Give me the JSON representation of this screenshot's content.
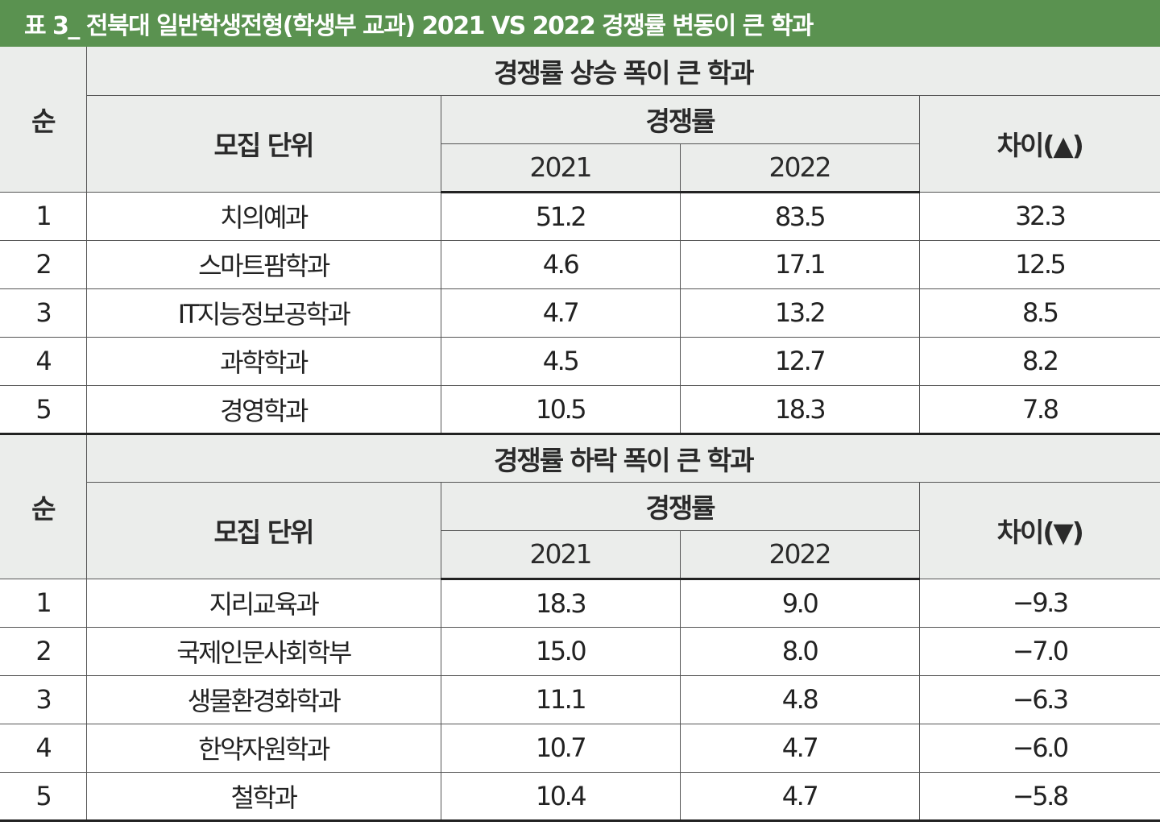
{
  "title": "표 3_ 전북대 일반학생전형(학생부 교과) 2021 VS 2022 경쟁률 변동이 큰 학과",
  "colors": {
    "title_bg": "#5a9250",
    "header_bg": "#ebedeb"
  },
  "headers": {
    "rank": "순",
    "unit": "모집 단위",
    "rate": "경쟁률",
    "year1": "2021",
    "year2": "2022"
  },
  "rise": {
    "caption": "경쟁률 상승 폭이 큰 학과",
    "diff_label": "차이(▲)",
    "rows": [
      {
        "rank": "1",
        "unit": "치의예과",
        "y2021": "51.2",
        "y2022": "83.5",
        "diff": "32.3"
      },
      {
        "rank": "2",
        "unit": "스마트팜학과",
        "y2021": "4.6",
        "y2022": "17.1",
        "diff": "12.5"
      },
      {
        "rank": "3",
        "unit": "IT지능정보공학과",
        "y2021": "4.7",
        "y2022": "13.2",
        "diff": "8.5"
      },
      {
        "rank": "4",
        "unit": "과학학과",
        "y2021": "4.5",
        "y2022": "12.7",
        "diff": "8.2"
      },
      {
        "rank": "5",
        "unit": "경영학과",
        "y2021": "10.5",
        "y2022": "18.3",
        "diff": "7.8"
      }
    ]
  },
  "fall": {
    "caption": "경쟁률 하락 폭이 큰 학과",
    "diff_label": "차이(▼)",
    "rows": [
      {
        "rank": "1",
        "unit": "지리교육과",
        "y2021": "18.3",
        "y2022": "9.0",
        "diff": "−9.3"
      },
      {
        "rank": "2",
        "unit": "국제인문사회학부",
        "y2021": "15.0",
        "y2022": "8.0",
        "diff": "−7.0"
      },
      {
        "rank": "3",
        "unit": "생물환경화학과",
        "y2021": "11.1",
        "y2022": "4.8",
        "diff": "−6.3"
      },
      {
        "rank": "4",
        "unit": "한약자원학과",
        "y2021": "10.7",
        "y2022": "4.7",
        "diff": "−6.0"
      },
      {
        "rank": "5",
        "unit": "철학과",
        "y2021": "10.4",
        "y2022": "4.7",
        "diff": "−5.8"
      }
    ]
  }
}
